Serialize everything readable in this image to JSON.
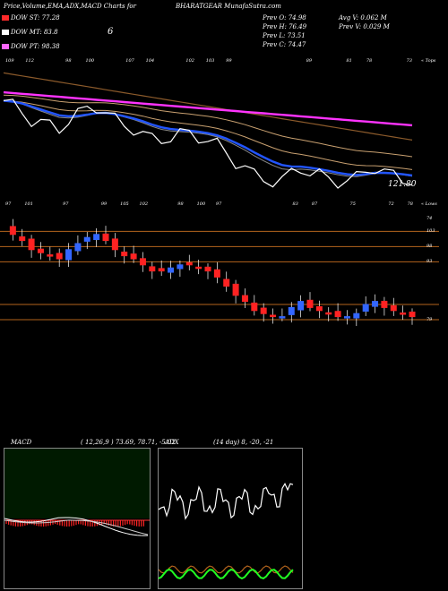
{
  "header": {
    "title": "Price,Volume,EMA,ADX,MACD Charts for",
    "symbol_line": "BHARATGEAR MunafaSutra.com",
    "dow_st": "DOW ST: 77.28",
    "dow_mt": "DOW MT: 83.8",
    "dow_mt_extra": "6",
    "dow_pt": "DOW PT: 98.38",
    "prev_open": "Prev  O: 74.98",
    "prev_high": "Prev  H: 76.49",
    "prev_low": "Prev  L: 73.51",
    "prev_close": "Prev  C: 74.47",
    "avg_vol": "Avg V: 0.062  M",
    "prev_vol": "Prev  V: 0.029 M",
    "legend_colors": {
      "st": "#ff2a2a",
      "mt": "#ffffff",
      "pt": "#ff66ff"
    }
  },
  "ema_panel": {
    "top_labels": [
      "109",
      "112",
      "",
      "98",
      "100",
      "",
      "107",
      "104",
      "",
      "102",
      "103",
      "99",
      "",
      "",
      "",
      "89",
      "",
      "81",
      "78",
      "",
      "73"
    ],
    "tops_label": "« Tops",
    "bottom_labels": [
      "97",
      "101",
      "",
      "97",
      "",
      "99",
      "105",
      "102",
      "",
      "98",
      "100",
      "97",
      "",
      "",
      "",
      "83",
      "87",
      "",
      "75",
      "",
      "72",
      "78"
    ],
    "lows_label": "« Lows",
    "last_value": "121.80",
    "colors": {
      "price": "#ffffff",
      "ema_short": "#2255ff",
      "ema_mid": "#c8a070",
      "ema_long": "#8b5a2b",
      "ema_pink": "#ff33ff"
    }
  },
  "candle_panel": {
    "right_labels": [
      "103",
      "98",
      "93",
      "",
      "79",
      "74"
    ]
  },
  "macd_panel": {
    "label": "MACD",
    "values": "( 12,26,9 ) 73.69, 78.71, -5.02"
  },
  "adx_panel": {
    "label": "ADX",
    "values": "(14  day) 8,  -20,  -21"
  },
  "chart_data": [
    {
      "type": "candlestick",
      "title": "BHARATGEAR daily price with EMA overlay",
      "approx_close_series": [
        104,
        102,
        100,
        97,
        96,
        95,
        94,
        97,
        99,
        101,
        102,
        100,
        97,
        95,
        94,
        92,
        90,
        90,
        91,
        92,
        92,
        91,
        90,
        88,
        85,
        82,
        80,
        77,
        76,
        75,
        75,
        78,
        80,
        78,
        77,
        76,
        75,
        75,
        76,
        79,
        80,
        78,
        77,
        76,
        75
      ],
      "reference_levels": [
        103,
        98,
        93,
        79,
        74
      ],
      "prev_ohlc": {
        "open": 74.98,
        "high": 76.49,
        "low": 73.51,
        "close": 74.47
      },
      "last_ema_label": 121.8
    },
    {
      "type": "line",
      "title": "MACD",
      "params": [
        12,
        26,
        9
      ],
      "series": [
        {
          "name": "MACD",
          "last": 73.69
        },
        {
          "name": "signal",
          "last": 78.71
        },
        {
          "name": "histogram",
          "last": -5.02
        }
      ]
    },
    {
      "type": "line",
      "title": "ADX",
      "period_days": 14,
      "series": [
        {
          "name": "ADX",
          "last": 8
        },
        {
          "name": "+DI",
          "last": -20
        },
        {
          "name": "-DI",
          "last": -21
        }
      ]
    }
  ]
}
